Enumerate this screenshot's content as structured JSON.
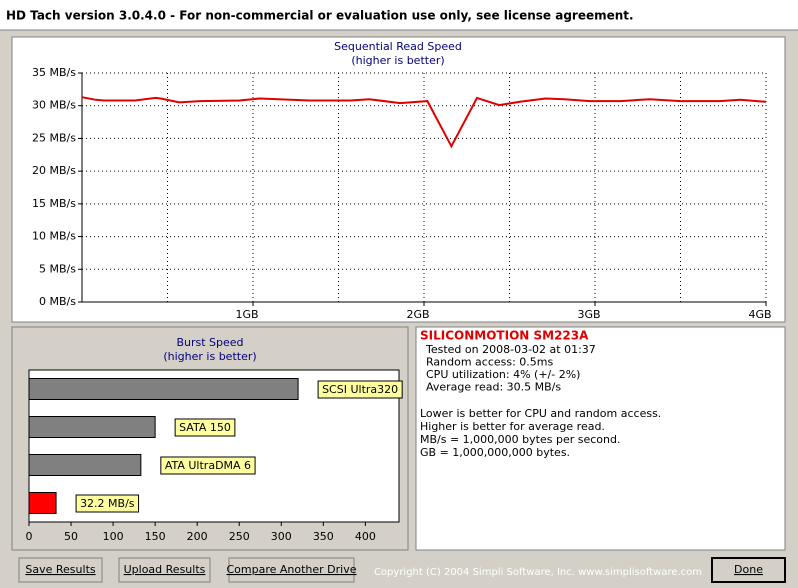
{
  "window": {
    "title": "HD Tach version 3.0.4.0  - For non-commercial or evaluation use only, see license agreement."
  },
  "chart_data": [
    {
      "type": "line",
      "title": "Sequential Read Speed",
      "subtitle": "(higher is better)",
      "x": [
        0,
        0.08,
        0.13,
        0.31,
        0.43,
        0.46,
        0.57,
        0.69,
        0.92,
        1.04,
        1.15,
        1.33,
        1.57,
        1.68,
        1.86,
        2.02,
        2.16,
        2.31,
        2.44,
        2.56,
        2.71,
        2.82,
        2.97,
        3.15,
        3.32,
        3.5,
        3.73,
        3.85,
        4.0
      ],
      "values": [
        31.3,
        30.9,
        30.8,
        30.8,
        31.2,
        31.1,
        30.5,
        30.7,
        30.8,
        31.1,
        31.0,
        30.8,
        30.8,
        31.0,
        30.4,
        30.7,
        23.8,
        31.2,
        30.1,
        30.6,
        31.1,
        31.0,
        30.7,
        30.7,
        31.0,
        30.7,
        30.7,
        30.9,
        30.6
      ],
      "color": "#e00000",
      "xlim": [
        0,
        4
      ],
      "ylim": [
        0,
        35
      ],
      "xticks": [
        {
          "value": 1,
          "label": "1GB"
        },
        {
          "value": 2,
          "label": "2GB"
        },
        {
          "value": 3,
          "label": "3GB"
        },
        {
          "value": 4,
          "label": "4GB"
        }
      ],
      "yticks": [
        {
          "value": 0,
          "label": "0 MB/s"
        },
        {
          "value": 5,
          "label": "5 MB/s"
        },
        {
          "value": 10,
          "label": "10 MB/s"
        },
        {
          "value": 15,
          "label": "15 MB/s"
        },
        {
          "value": 20,
          "label": "20 MB/s"
        },
        {
          "value": 25,
          "label": "25 MB/s"
        },
        {
          "value": 30,
          "label": "30 MB/s"
        },
        {
          "value": 35,
          "label": "35 MB/s"
        }
      ],
      "grid": true
    },
    {
      "type": "hbar",
      "title": "Burst Speed",
      "subtitle": "(higher is better)",
      "categories": [
        "SCSI Ultra320",
        "SATA 150",
        "ATA UltraDMA 6",
        null
      ],
      "values": [
        320,
        150,
        133,
        32.2
      ],
      "value_labels": [
        null,
        null,
        null,
        "32.2 MB/s"
      ],
      "colors": [
        "#808080",
        "#808080",
        "#808080",
        "#ff0000"
      ],
      "xlim": [
        0,
        440
      ],
      "xticks": [
        0,
        50,
        100,
        150,
        200,
        250,
        300,
        350,
        400
      ]
    }
  ],
  "info": {
    "drive": "SILICONMOTION SM223A",
    "details": [
      "Tested on 2008-03-02 at 01:37",
      "Random access: 0.5ms",
      "CPU utilization: 4% (+/- 2%)",
      "Average read: 30.5 MB/s"
    ],
    "notes": [
      "Lower is better for CPU and random access.",
      "Higher is better for average read.",
      "MB/s = 1,000,000 bytes per second.",
      "GB = 1,000,000,000 bytes."
    ]
  },
  "buttons": [
    "Save Results",
    "Upload Results",
    "Compare Another Drive",
    "Done"
  ],
  "copyright": "Copyright (C) 2004 Simpli Software, Inc. www.simplisoftware.com"
}
